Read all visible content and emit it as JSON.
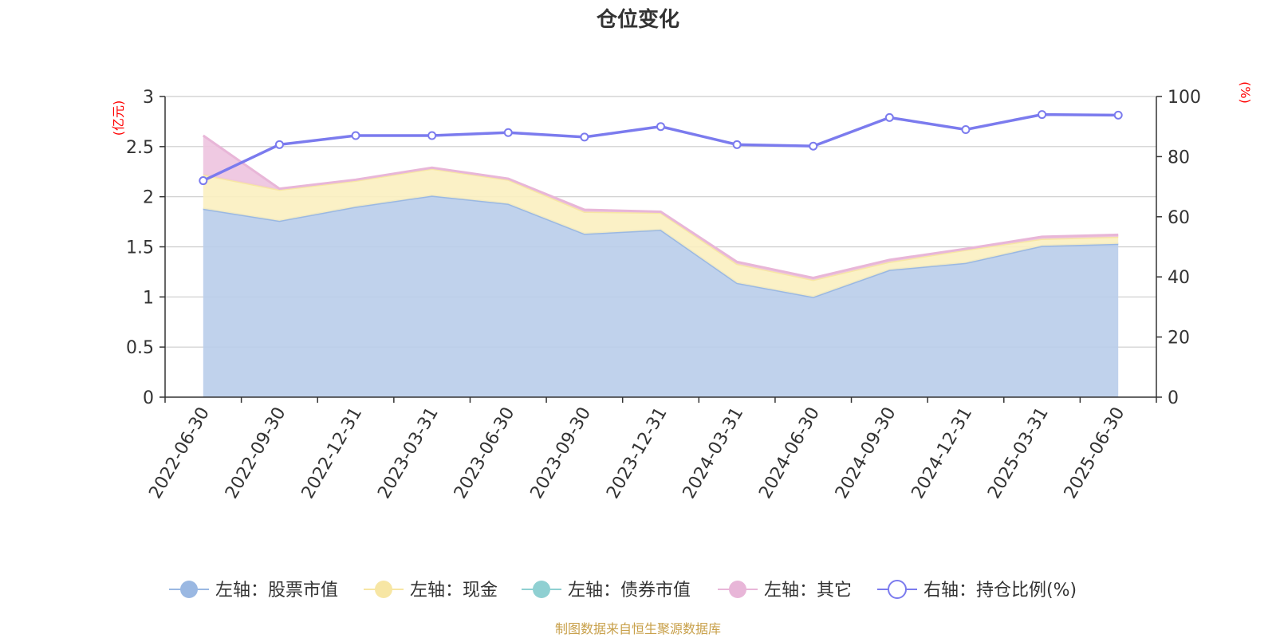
{
  "chart_data": {
    "type": "area",
    "title": "仓位变化",
    "categories": [
      "2022-06-30",
      "2022-09-30",
      "2022-12-31",
      "2023-03-31",
      "2023-06-30",
      "2023-09-30",
      "2023-12-31",
      "2024-03-31",
      "2024-06-30",
      "2024-09-30",
      "2024-12-31",
      "2025-03-31",
      "2025-06-30"
    ],
    "left_axis": {
      "unit": "(亿元)",
      "ylim": [
        0,
        3
      ],
      "ticks": [
        "0",
        "0.5",
        "1",
        "1.5",
        "2",
        "2.5",
        "3"
      ]
    },
    "right_axis": {
      "unit": "(%)",
      "ylim": [
        0,
        100
      ],
      "ticks": [
        "0",
        "20",
        "40",
        "60",
        "80",
        "100"
      ]
    },
    "grid": true,
    "legend_position": "bottom",
    "series": [
      {
        "name": "左轴：股票市值",
        "axis": "left",
        "color": "#9ab8e2",
        "fill": "#b9cdea",
        "values": [
          1.88,
          1.76,
          1.9,
          2.01,
          1.93,
          1.63,
          1.67,
          1.14,
          1.0,
          1.27,
          1.34,
          1.51,
          1.53
        ]
      },
      {
        "name": "左轴：现金",
        "axis": "left",
        "color": "#f7e6a4",
        "fill": "#fbefc0",
        "values": [
          0.34,
          0.31,
          0.26,
          0.27,
          0.24,
          0.22,
          0.17,
          0.19,
          0.17,
          0.08,
          0.13,
          0.07,
          0.07
        ]
      },
      {
        "name": "左轴：债券市值",
        "axis": "left",
        "color": "#8fd0d2",
        "fill": "#8fd0d2",
        "values": [
          0,
          0,
          0,
          0,
          0,
          0,
          0,
          0,
          0,
          0,
          0,
          0,
          0
        ]
      },
      {
        "name": "左轴：其它",
        "axis": "left",
        "color": "#e8b6d8",
        "fill": "#edc3df",
        "values": [
          0.39,
          0.01,
          0.01,
          0.01,
          0.01,
          0.02,
          0.01,
          0.02,
          0.02,
          0.02,
          0.01,
          0.02,
          0.02
        ]
      },
      {
        "name": "右轴：持仓比例(%)",
        "axis": "right",
        "color": "#7b7bee",
        "values": [
          72,
          84,
          87,
          87,
          88,
          86.5,
          90,
          84,
          83.5,
          93,
          89,
          94,
          93.8
        ]
      }
    ]
  },
  "source_text": "制图数据来自恒生聚源数据库"
}
